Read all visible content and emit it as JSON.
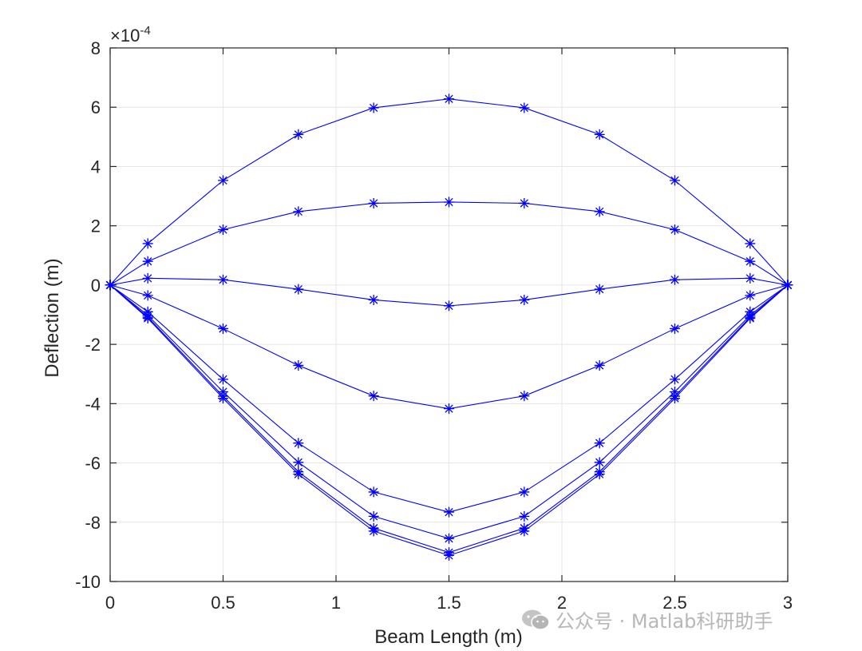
{
  "chart_data": {
    "type": "line",
    "xlabel": "Beam Length (m)",
    "ylabel": "Deflection (m)",
    "y_scale_exponent": "-4",
    "y_scale_prefix": "×10",
    "xlim": [
      0,
      3
    ],
    "ylim": [
      -10,
      8
    ],
    "grid": true,
    "x_ticks": [
      "0",
      "0.5",
      "1",
      "1.5",
      "2",
      "2.5",
      "3"
    ],
    "x_tick_values": [
      0,
      0.5,
      1,
      1.5,
      2,
      2.5,
      3
    ],
    "y_ticks": [
      "8",
      "6",
      "4",
      "2",
      "0",
      "-2",
      "-4",
      "-6",
      "-8",
      "-10"
    ],
    "y_tick_values": [
      8,
      6,
      4,
      2,
      0,
      -2,
      -4,
      -6,
      -8,
      -10
    ],
    "marker": "asterisk",
    "color": "#0000ff",
    "x": [
      0,
      0.1667,
      0.5,
      0.8333,
      1.1667,
      1.5,
      1.8333,
      2.1667,
      2.5,
      2.8333,
      3
    ],
    "series": [
      {
        "values": [
          0,
          1.4,
          3.53,
          5.08,
          5.98,
          6.28,
          5.98,
          5.08,
          3.53,
          1.4,
          0
        ]
      },
      {
        "values": [
          0,
          0.8,
          1.87,
          2.48,
          2.76,
          2.8,
          2.76,
          2.48,
          1.87,
          0.8,
          0
        ]
      },
      {
        "values": [
          0,
          0.23,
          0.18,
          -0.14,
          -0.5,
          -0.7,
          -0.5,
          -0.14,
          0.18,
          0.23,
          0
        ]
      },
      {
        "values": [
          0,
          -0.35,
          -1.47,
          -2.71,
          -3.74,
          -4.17,
          -3.74,
          -2.71,
          -1.47,
          -0.35,
          0
        ]
      },
      {
        "values": [
          0,
          -0.9,
          -3.18,
          -5.33,
          -6.98,
          -7.66,
          -6.98,
          -5.33,
          -3.18,
          -0.9,
          0
        ]
      },
      {
        "values": [
          0,
          -1.02,
          -3.6,
          -5.98,
          -7.8,
          -8.55,
          -7.8,
          -5.98,
          -3.6,
          -1.02,
          0
        ]
      },
      {
        "values": [
          0,
          -1.08,
          -3.75,
          -6.3,
          -8.2,
          -9.02,
          -8.2,
          -6.3,
          -3.75,
          -1.08,
          0
        ]
      },
      {
        "values": [
          0,
          -1.12,
          -3.82,
          -6.38,
          -8.3,
          -9.12,
          -8.3,
          -6.38,
          -3.82,
          -1.12,
          0
        ]
      }
    ]
  },
  "watermark": {
    "text": "公众号 · Matlab科研助手",
    "icon": "wechat-icon"
  }
}
